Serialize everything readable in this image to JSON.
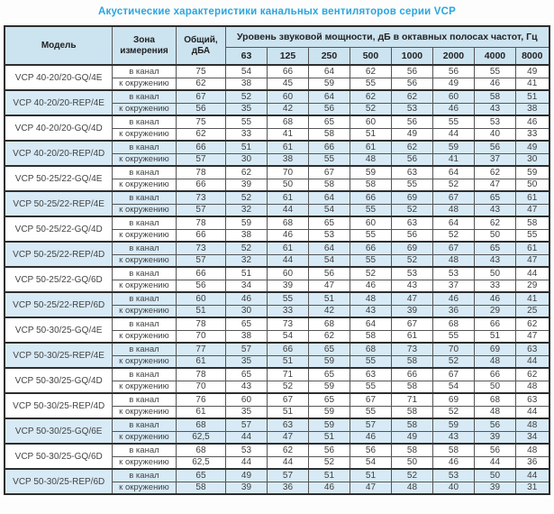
{
  "title": "Акустические характеристики канальных вентиляторов  серии VCP",
  "table": {
    "headers": {
      "model": "Модель",
      "zone": "Зона измерения",
      "total": "Общий, дБА",
      "spl_group": "Уровень звуковой мощности, дБ в октавных полосах частот, Гц",
      "frequencies": [
        "63",
        "125",
        "250",
        "500",
        "1000",
        "2000",
        "4000",
        "8000"
      ]
    },
    "zone_labels": {
      "duct": "в канал",
      "ambient": "к окружению"
    },
    "rows": [
      {
        "model": "VCP 40-20/20-GQ/4E",
        "highlight": false,
        "duct": {
          "total": "75",
          "values": [
            "54",
            "66",
            "64",
            "62",
            "56",
            "56",
            "55",
            "49"
          ]
        },
        "ambient": {
          "total": "62",
          "values": [
            "38",
            "45",
            "59",
            "55",
            "56",
            "49",
            "46",
            "41"
          ]
        }
      },
      {
        "model": "VCP 40-20/20-REP/4E",
        "highlight": true,
        "duct": {
          "total": "67",
          "values": [
            "52",
            "60",
            "64",
            "62",
            "62",
            "60",
            "58",
            "51"
          ]
        },
        "ambient": {
          "total": "56",
          "values": [
            "35",
            "42",
            "56",
            "52",
            "53",
            "46",
            "43",
            "38"
          ]
        }
      },
      {
        "model": "VCP 40-20/20-GQ/4D",
        "highlight": false,
        "duct": {
          "total": "75",
          "values": [
            "55",
            "68",
            "65",
            "60",
            "56",
            "55",
            "53",
            "46"
          ]
        },
        "ambient": {
          "total": "62",
          "values": [
            "33",
            "41",
            "58",
            "51",
            "49",
            "44",
            "40",
            "33"
          ]
        }
      },
      {
        "model": "VCP 40-20/20-REP/4D",
        "highlight": true,
        "duct": {
          "total": "66",
          "values": [
            "51",
            "61",
            "66",
            "61",
            "62",
            "59",
            "56",
            "49"
          ]
        },
        "ambient": {
          "total": "57",
          "values": [
            "30",
            "38",
            "55",
            "48",
            "56",
            "41",
            "37",
            "30"
          ]
        }
      },
      {
        "model": "VCP 50-25/22-GQ/4E",
        "highlight": false,
        "duct": {
          "total": "78",
          "values": [
            "62",
            "70",
            "67",
            "59",
            "63",
            "64",
            "62",
            "59"
          ]
        },
        "ambient": {
          "total": "66",
          "values": [
            "39",
            "50",
            "58",
            "58",
            "55",
            "52",
            "47",
            "50"
          ]
        }
      },
      {
        "model": "VCP 50-25/22-REP/4E",
        "highlight": true,
        "duct": {
          "total": "73",
          "values": [
            "52",
            "61",
            "64",
            "66",
            "69",
            "67",
            "65",
            "61"
          ]
        },
        "ambient": {
          "total": "57",
          "values": [
            "32",
            "44",
            "54",
            "55",
            "52",
            "48",
            "43",
            "47"
          ]
        }
      },
      {
        "model": "VCP 50-25/22-GQ/4D",
        "highlight": false,
        "duct": {
          "total": "78",
          "values": [
            "59",
            "68",
            "65",
            "60",
            "63",
            "64",
            "62",
            "58"
          ]
        },
        "ambient": {
          "total": "66",
          "values": [
            "38",
            "46",
            "53",
            "55",
            "56",
            "52",
            "50",
            "55"
          ]
        }
      },
      {
        "model": "VCP 50-25/22-REP/4D",
        "highlight": true,
        "duct": {
          "total": "73",
          "values": [
            "52",
            "61",
            "64",
            "66",
            "69",
            "67",
            "65",
            "61"
          ]
        },
        "ambient": {
          "total": "57",
          "values": [
            "32",
            "44",
            "54",
            "55",
            "52",
            "48",
            "43",
            "47"
          ]
        }
      },
      {
        "model": "VCP 50-25/22-GQ/6D",
        "highlight": false,
        "duct": {
          "total": "66",
          "values": [
            "51",
            "60",
            "56",
            "52",
            "53",
            "53",
            "50",
            "44"
          ]
        },
        "ambient": {
          "total": "56",
          "values": [
            "34",
            "39",
            "47",
            "46",
            "43",
            "37",
            "33",
            "29"
          ]
        }
      },
      {
        "model": "VCP 50-25/22-REP/6D",
        "highlight": true,
        "duct": {
          "total": "60",
          "values": [
            "46",
            "55",
            "51",
            "48",
            "47",
            "46",
            "46",
            "41"
          ]
        },
        "ambient": {
          "total": "51",
          "values": [
            "30",
            "33",
            "42",
            "43",
            "39",
            "36",
            "29",
            "25"
          ]
        }
      },
      {
        "model": "VCP 50-30/25-GQ/4E",
        "highlight": false,
        "duct": {
          "total": "78",
          "values": [
            "65",
            "73",
            "68",
            "64",
            "67",
            "68",
            "66",
            "62"
          ]
        },
        "ambient": {
          "total": "70",
          "values": [
            "38",
            "54",
            "62",
            "58",
            "61",
            "55",
            "51",
            "47"
          ]
        }
      },
      {
        "model": "VCP 50-30/25-REP/4E",
        "highlight": true,
        "duct": {
          "total": "77",
          "values": [
            "57",
            "66",
            "65",
            "68",
            "73",
            "70",
            "69",
            "63"
          ]
        },
        "ambient": {
          "total": "61",
          "values": [
            "35",
            "51",
            "59",
            "55",
            "58",
            "52",
            "48",
            "44"
          ]
        }
      },
      {
        "model": "VCP 50-30/25-GQ/4D",
        "highlight": false,
        "duct": {
          "total": "78",
          "values": [
            "65",
            "71",
            "65",
            "63",
            "66",
            "67",
            "66",
            "62"
          ]
        },
        "ambient": {
          "total": "70",
          "values": [
            "43",
            "52",
            "59",
            "55",
            "58",
            "54",
            "50",
            "48"
          ]
        }
      },
      {
        "model": "VCP 50-30/25-REP/4D",
        "highlight": false,
        "duct": {
          "total": "76",
          "values": [
            "60",
            "67",
            "65",
            "67",
            "71",
            "69",
            "68",
            "63"
          ]
        },
        "ambient": {
          "total": "61",
          "values": [
            "35",
            "51",
            "59",
            "55",
            "58",
            "52",
            "48",
            "44"
          ]
        }
      },
      {
        "model": "VCP 50-30/25-GQ/6E",
        "highlight": true,
        "duct": {
          "total": "68",
          "values": [
            "57",
            "63",
            "59",
            "57",
            "58",
            "59",
            "56",
            "48"
          ]
        },
        "ambient": {
          "total": "62,5",
          "values": [
            "44",
            "47",
            "51",
            "46",
            "49",
            "43",
            "39",
            "34"
          ]
        }
      },
      {
        "model": "VCP 50-30/25-GQ/6D",
        "highlight": false,
        "duct": {
          "total": "68",
          "values": [
            "53",
            "62",
            "56",
            "56",
            "58",
            "58",
            "56",
            "48"
          ]
        },
        "ambient": {
          "total": "62,5",
          "values": [
            "44",
            "44",
            "52",
            "54",
            "50",
            "46",
            "44",
            "36"
          ]
        }
      },
      {
        "model": "VCP 50-30/25-REP/6D",
        "highlight": true,
        "duct": {
          "total": "65",
          "values": [
            "49",
            "57",
            "51",
            "51",
            "52",
            "53",
            "50",
            "44"
          ]
        },
        "ambient": {
          "total": "58",
          "values": [
            "39",
            "36",
            "46",
            "47",
            "48",
            "40",
            "39",
            "31"
          ]
        }
      }
    ]
  },
  "colors": {
    "title_text": "#2aa6de",
    "header_bg": "#cce3f0",
    "highlight_row_bg": "#d7eaf6",
    "border": "#565656",
    "block_border": "#2e2e2e",
    "text": "#3d3d3d"
  }
}
